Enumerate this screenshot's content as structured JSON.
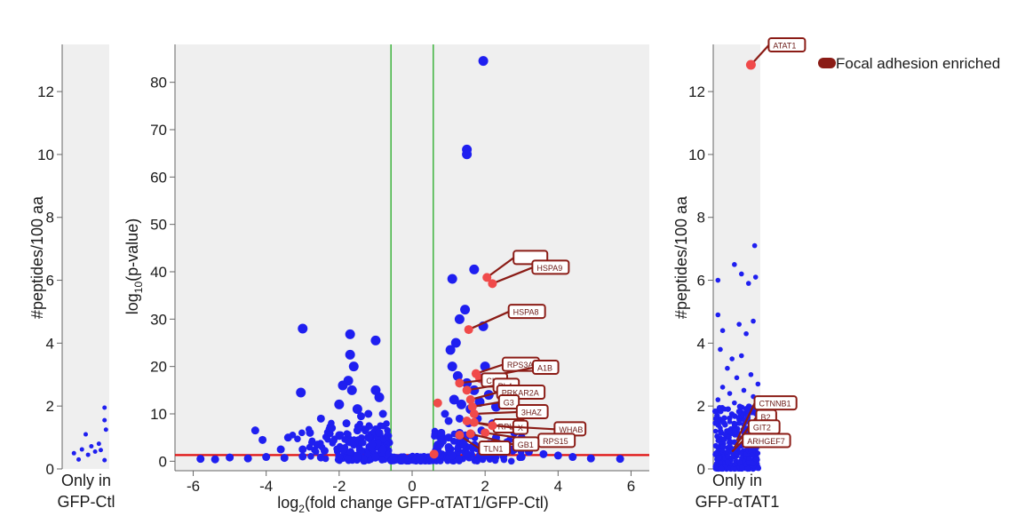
{
  "colors": {
    "background": "#ffffff",
    "panel": "#efefef",
    "point": "#1f1ff0",
    "highlight": "#f04a4a",
    "label_border": "#8b1c16",
    "label_fill": "#ffffff",
    "threshold_fc": "#22aa22",
    "threshold_p": "#e01010"
  },
  "legend": {
    "label": "Focal adhesion enriched",
    "position": "top-right"
  },
  "chart_data": [
    {
      "type": "scatter",
      "panel": "only-in-gfp-ctl",
      "xlabel": "Only in GFP-Ctl",
      "xlabel_lines": [
        "Only in",
        "GFP-Ctl"
      ],
      "ylabel": "#peptides/100 aa",
      "ylim": [
        0,
        13.5
      ],
      "yticks": [
        0,
        2,
        4,
        6,
        8,
        10,
        12
      ],
      "points": [
        {
          "x": 0.25,
          "y": 0.5
        },
        {
          "x": 0.42,
          "y": 0.62
        },
        {
          "x": 0.5,
          "y": 1.1
        },
        {
          "x": 0.55,
          "y": 0.45
        },
        {
          "x": 0.62,
          "y": 0.72
        },
        {
          "x": 0.7,
          "y": 0.55
        },
        {
          "x": 0.78,
          "y": 0.8
        },
        {
          "x": 0.82,
          "y": 0.6
        },
        {
          "x": 0.9,
          "y": 1.95
        },
        {
          "x": 0.9,
          "y": 1.55
        },
        {
          "x": 0.93,
          "y": 1.25
        },
        {
          "x": 0.9,
          "y": 0.28
        },
        {
          "x": 0.35,
          "y": 0.3
        }
      ]
    },
    {
      "type": "scatter",
      "panel": "volcano",
      "xlabel": "log2(fold change GFP-αTAT1/GFP-Ctl)",
      "xlabel_parts": [
        "log",
        "2",
        "(fold change GFP-αTAT1/GFP-Ctl)"
      ],
      "ylabel": "log10(p-value)",
      "ylabel_parts": [
        "log",
        "10",
        "(p-value)"
      ],
      "xlim": [
        -6.5,
        6.5
      ],
      "ylim": [
        -2,
        88
      ],
      "xticks": [
        -6,
        -4,
        -2,
        0,
        2,
        4,
        6
      ],
      "yticks": [
        0,
        10,
        20,
        30,
        40,
        50,
        60,
        70,
        80
      ],
      "fc_thresholds": [
        -0.58,
        0.58
      ],
      "p_threshold": 1.3,
      "points": [
        {
          "x": 1.95,
          "y": 84.5
        },
        {
          "x": 1.5,
          "y": 65.8
        },
        {
          "x": 1.5,
          "y": 64.8
        },
        {
          "x": 1.7,
          "y": 40.5
        },
        {
          "x": 1.1,
          "y": 38.5
        },
        {
          "x": -3.0,
          "y": 28
        },
        {
          "x": -1.7,
          "y": 26.8
        },
        {
          "x": -1.0,
          "y": 25.5
        },
        {
          "x": 1.45,
          "y": 32
        },
        {
          "x": 1.3,
          "y": 30
        },
        {
          "x": 1.2,
          "y": 25
        },
        {
          "x": 1.05,
          "y": 23.5
        },
        {
          "x": 1.95,
          "y": 28.5
        },
        {
          "x": -1.7,
          "y": 22.5
        },
        {
          "x": -1.6,
          "y": 20
        },
        {
          "x": -1.75,
          "y": 17
        },
        {
          "x": -1.65,
          "y": 15
        },
        {
          "x": -1.9,
          "y": 16
        },
        {
          "x": -1.0,
          "y": 15
        },
        {
          "x": -0.9,
          "y": 13.5
        },
        {
          "x": -3.05,
          "y": 14.5
        },
        {
          "x": -2.0,
          "y": 12
        },
        {
          "x": -1.5,
          "y": 11
        },
        {
          "x": -1.2,
          "y": 10
        },
        {
          "x": -2.5,
          "y": 9
        },
        {
          "x": -1.8,
          "y": 8
        },
        {
          "x": -1.4,
          "y": 9.5
        },
        {
          "x": -0.8,
          "y": 10
        },
        {
          "x": -4.3,
          "y": 6.5
        },
        {
          "x": -4.1,
          "y": 4.5
        },
        {
          "x": -3.4,
          "y": 5
        },
        {
          "x": -2.8,
          "y": 6
        },
        {
          "x": -2.2,
          "y": 7
        },
        {
          "x": -2.0,
          "y": 5.5
        },
        {
          "x": -1.5,
          "y": 6.5
        },
        {
          "x": -1.2,
          "y": 5
        },
        {
          "x": -0.9,
          "y": 6
        },
        {
          "x": -2.6,
          "y": 3.5
        },
        {
          "x": -1.7,
          "y": 4
        },
        {
          "x": -1.1,
          "y": 3.5
        },
        {
          "x": -3.6,
          "y": 2.5
        },
        {
          "x": -3.0,
          "y": 2.5
        },
        {
          "x": -2.4,
          "y": 2.2
        },
        {
          "x": -1.9,
          "y": 2.5
        },
        {
          "x": -1.4,
          "y": 2.2
        },
        {
          "x": -0.8,
          "y": 2.5
        },
        {
          "x": -5.0,
          "y": 0.8
        },
        {
          "x": -4.5,
          "y": 0.6
        },
        {
          "x": -4.0,
          "y": 0.9
        },
        {
          "x": -3.5,
          "y": 0.7
        },
        {
          "x": -3.0,
          "y": 1.0
        },
        {
          "x": -2.5,
          "y": 0.8
        },
        {
          "x": -2.0,
          "y": 0.9
        },
        {
          "x": -1.5,
          "y": 1.0
        },
        {
          "x": -1.0,
          "y": 0.9
        },
        {
          "x": -0.5,
          "y": 0.8
        },
        {
          "x": -0.2,
          "y": 0.4
        },
        {
          "x": 0.2,
          "y": 0.5
        },
        {
          "x": 0.5,
          "y": 0.8
        },
        {
          "x": -5.8,
          "y": 0.5
        },
        {
          "x": -5.4,
          "y": 0.4
        },
        {
          "x": 1.1,
          "y": 20
        },
        {
          "x": 1.25,
          "y": 18
        },
        {
          "x": 1.5,
          "y": 16.5
        },
        {
          "x": 1.7,
          "y": 15
        },
        {
          "x": 1.9,
          "y": 17.5
        },
        {
          "x": 2.0,
          "y": 20
        },
        {
          "x": 1.15,
          "y": 13
        },
        {
          "x": 1.35,
          "y": 12
        },
        {
          "x": 1.6,
          "y": 11
        },
        {
          "x": 1.85,
          "y": 12.5
        },
        {
          "x": 2.1,
          "y": 14
        },
        {
          "x": 2.3,
          "y": 11.5
        },
        {
          "x": 0.9,
          "y": 10
        },
        {
          "x": 1.0,
          "y": 8.5
        },
        {
          "x": 1.3,
          "y": 9
        },
        {
          "x": 1.55,
          "y": 8
        },
        {
          "x": 1.8,
          "y": 9
        },
        {
          "x": 2.2,
          "y": 8
        },
        {
          "x": 2.5,
          "y": 7
        },
        {
          "x": 2.8,
          "y": 6
        },
        {
          "x": 3.0,
          "y": 5
        },
        {
          "x": 3.3,
          "y": 4
        },
        {
          "x": 0.8,
          "y": 6
        },
        {
          "x": 1.0,
          "y": 5
        },
        {
          "x": 1.3,
          "y": 6
        },
        {
          "x": 1.6,
          "y": 5.5
        },
        {
          "x": 1.9,
          "y": 6.5
        },
        {
          "x": 2.3,
          "y": 5
        },
        {
          "x": 2.6,
          "y": 4
        },
        {
          "x": 0.7,
          "y": 3.5
        },
        {
          "x": 1.0,
          "y": 3
        },
        {
          "x": 1.4,
          "y": 3.5
        },
        {
          "x": 1.8,
          "y": 3
        },
        {
          "x": 2.2,
          "y": 2.5
        },
        {
          "x": 2.7,
          "y": 2.5
        },
        {
          "x": 3.2,
          "y": 2
        },
        {
          "x": 3.6,
          "y": 1.5
        },
        {
          "x": 4.0,
          "y": 1.2
        },
        {
          "x": 4.4,
          "y": 0.9
        },
        {
          "x": 4.9,
          "y": 0.6
        },
        {
          "x": 5.7,
          "y": 0.5
        },
        {
          "x": 0.7,
          "y": 1.5
        },
        {
          "x": 1.1,
          "y": 1.2
        },
        {
          "x": 1.5,
          "y": 1.5
        },
        {
          "x": 2.0,
          "y": 1.3
        },
        {
          "x": 2.5,
          "y": 1.1
        },
        {
          "x": 3.0,
          "y": 0.9
        }
      ],
      "highlighted": [
        {
          "x": 2.05,
          "y": 38.8,
          "label": ""
        },
        {
          "x": 2.2,
          "y": 37.5,
          "label": "HSPA9"
        },
        {
          "x": 1.55,
          "y": 27.8,
          "label": "HSPA8"
        },
        {
          "x": 1.75,
          "y": 18.5,
          "label": "RPS3A"
        },
        {
          "x": 1.85,
          "y": 17.5,
          "label": "A1B"
        },
        {
          "x": 1.3,
          "y": 16.5,
          "label": "CLT"
        },
        {
          "x": 1.5,
          "y": 15,
          "label": "PL4"
        },
        {
          "x": 1.6,
          "y": 13,
          "label": "PRKAR2A"
        },
        {
          "x": 1.65,
          "y": 11.5,
          "label": "G3"
        },
        {
          "x": 0.7,
          "y": 12.3,
          "label": ""
        },
        {
          "x": 1.7,
          "y": 10,
          "label": "3HAZ"
        },
        {
          "x": 1.5,
          "y": 8.5,
          "label": "RPL9"
        },
        {
          "x": 1.7,
          "y": 8.2,
          "label": "X"
        },
        {
          "x": 2.2,
          "y": 7.5,
          "label": "WHAB"
        },
        {
          "x": 2.0,
          "y": 6,
          "label": "RPS15"
        },
        {
          "x": 1.6,
          "y": 5.8,
          "label": "GB1"
        },
        {
          "x": 1.3,
          "y": 5.5,
          "label": "TLN1"
        },
        {
          "x": 0.6,
          "y": 1.5,
          "label": ""
        }
      ]
    },
    {
      "type": "scatter",
      "panel": "only-in-gfp-atat1",
      "xlabel": "Only in GFP-αTAT1",
      "xlabel_lines": [
        "Only in",
        "GFP-αTAT1"
      ],
      "ylabel": "#peptides/100 aa",
      "ylim": [
        0,
        13.5
      ],
      "yticks": [
        0,
        2,
        4,
        6,
        8,
        10,
        12
      ],
      "points": [
        {
          "x": 0.88,
          "y": 7.1
        },
        {
          "x": 0.45,
          "y": 6.5
        },
        {
          "x": 0.6,
          "y": 6.2
        },
        {
          "x": 0.9,
          "y": 6.1
        },
        {
          "x": 0.1,
          "y": 6.0
        },
        {
          "x": 0.75,
          "y": 5.9
        },
        {
          "x": 0.1,
          "y": 4.9
        },
        {
          "x": 0.55,
          "y": 4.6
        },
        {
          "x": 0.2,
          "y": 4.4
        },
        {
          "x": 0.7,
          "y": 4.3
        },
        {
          "x": 0.85,
          "y": 4.7
        },
        {
          "x": 0.15,
          "y": 3.8
        },
        {
          "x": 0.4,
          "y": 3.5
        },
        {
          "x": 0.6,
          "y": 3.6
        },
        {
          "x": 0.3,
          "y": 3.2
        },
        {
          "x": 0.8,
          "y": 3.0
        },
        {
          "x": 0.5,
          "y": 2.9
        },
        {
          "x": 0.95,
          "y": 2.7
        },
        {
          "x": 0.2,
          "y": 2.6
        },
        {
          "x": 0.35,
          "y": 2.4
        },
        {
          "x": 0.65,
          "y": 2.5
        },
        {
          "x": 0.85,
          "y": 2.3
        },
        {
          "x": 0.1,
          "y": 2.2
        },
        {
          "x": 0.45,
          "y": 2.1
        },
        {
          "x": 0.75,
          "y": 2.0
        },
        {
          "x": 0.25,
          "y": 1.9
        },
        {
          "x": 0.55,
          "y": 1.8
        },
        {
          "x": 0.9,
          "y": 1.75
        },
        {
          "x": 0.05,
          "y": 1.6
        },
        {
          "x": 0.35,
          "y": 1.5
        },
        {
          "x": 0.65,
          "y": 1.55
        },
        {
          "x": 0.15,
          "y": 1.3
        },
        {
          "x": 0.45,
          "y": 1.25
        },
        {
          "x": 0.8,
          "y": 1.3
        },
        {
          "x": 0.25,
          "y": 1.1
        },
        {
          "x": 0.55,
          "y": 1.0
        },
        {
          "x": 0.95,
          "y": 1.05
        },
        {
          "x": 0.1,
          "y": 0.9
        },
        {
          "x": 0.4,
          "y": 0.85
        },
        {
          "x": 0.7,
          "y": 0.8
        },
        {
          "x": 0.2,
          "y": 0.6
        },
        {
          "x": 0.5,
          "y": 0.65
        },
        {
          "x": 0.85,
          "y": 0.6
        },
        {
          "x": 0.3,
          "y": 0.4
        },
        {
          "x": 0.6,
          "y": 0.35
        },
        {
          "x": 0.9,
          "y": 0.3
        },
        {
          "x": 0.15,
          "y": 0.2
        },
        {
          "x": 0.45,
          "y": 0.15
        },
        {
          "x": 0.75,
          "y": 0.2
        },
        {
          "x": 0.05,
          "y": 0.5
        },
        {
          "x": 0.35,
          "y": 0.75
        },
        {
          "x": 0.65,
          "y": 1.15
        },
        {
          "x": 0.25,
          "y": 1.4
        },
        {
          "x": 0.55,
          "y": 1.65
        },
        {
          "x": 0.05,
          "y": 1.2
        },
        {
          "x": 0.95,
          "y": 0.5
        },
        {
          "x": 0.5,
          "y": 0.45
        }
      ],
      "highlighted": [
        {
          "x": 0.8,
          "y": 12.85,
          "label": "ATAT1"
        },
        {
          "x": 0.5,
          "y": 0.9,
          "label": "CTNNB1"
        },
        {
          "x": 0.5,
          "y": 0.8,
          "label": "B2"
        },
        {
          "x": 0.45,
          "y": 0.7,
          "label": "GIT2"
        },
        {
          "x": 0.4,
          "y": 0.55,
          "label": "ARHGEF7"
        }
      ]
    }
  ]
}
